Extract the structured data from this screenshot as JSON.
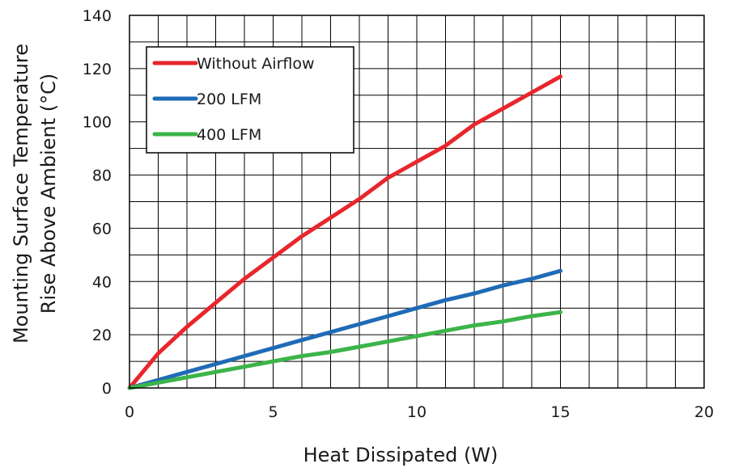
{
  "chart_data": {
    "type": "line",
    "title": "",
    "xlabel": "Heat Dissipated (W)",
    "ylabel_line1": "Mounting Surface Temperature",
    "ylabel_line2": "Rise Above  Ambient (°C)",
    "xlim": [
      0,
      20
    ],
    "ylim": [
      0,
      140
    ],
    "x_minor_step": 1,
    "y_minor_step": 10,
    "x_ticks": [
      0,
      5,
      10,
      15,
      20
    ],
    "y_ticks": [
      0,
      20,
      40,
      60,
      80,
      100,
      120,
      140
    ],
    "grid": true,
    "legend_position": "top-left",
    "series": [
      {
        "name": "Without Airflow",
        "color": "#e8262c",
        "x": [
          0,
          1,
          2,
          3,
          4,
          5,
          6,
          7,
          8,
          9,
          10,
          11,
          12,
          13,
          14,
          15
        ],
        "y": [
          0,
          13,
          23,
          32,
          41,
          49,
          57,
          64,
          71,
          79,
          85,
          91,
          99,
          105,
          111,
          117
        ]
      },
      {
        "name": "200 LFM",
        "color": "#1f6bb6",
        "x": [
          0,
          1,
          2,
          3,
          4,
          5,
          6,
          7,
          8,
          9,
          10,
          11,
          12,
          13,
          14,
          15
        ],
        "y": [
          0,
          3,
          6,
          9,
          12,
          15,
          18,
          21,
          24,
          27,
          30,
          33,
          35.5,
          38.5,
          41,
          44
        ]
      },
      {
        "name": "400 LFM",
        "color": "#3cb44a",
        "x": [
          0,
          1,
          2,
          3,
          4,
          5,
          6,
          7,
          8,
          9,
          10,
          11,
          12,
          13,
          14,
          15
        ],
        "y": [
          0,
          2,
          4,
          6,
          8,
          10,
          12,
          13.5,
          15.5,
          17.5,
          19.5,
          21.5,
          23.5,
          25,
          27,
          28.5
        ]
      }
    ]
  }
}
